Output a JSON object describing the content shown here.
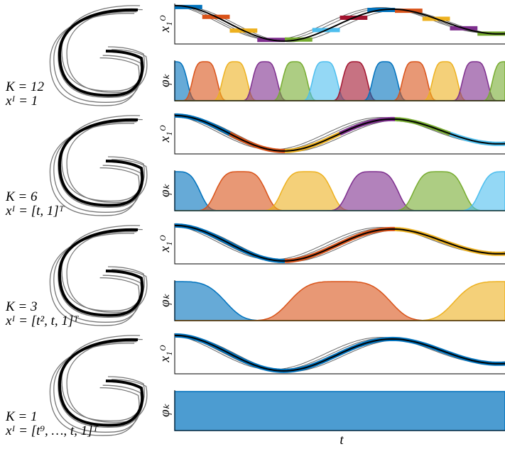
{
  "rows": [
    {
      "k_label": "K = 12",
      "input_label": "xᴵ = 1"
    },
    {
      "k_label": "K = 6",
      "input_label": "xᴵ = [t, 1]ᵀ"
    },
    {
      "k_label": "K = 3",
      "input_label": "xᴵ = [t², t, 1]ᵀ"
    },
    {
      "k_label": "K = 1",
      "input_label": "xᴵ = [t⁹, …, t, 1]ᵀ"
    }
  ],
  "axis_labels": {
    "output": "x₁ᴼ",
    "basis": "φₖ",
    "time": "t"
  }
}
